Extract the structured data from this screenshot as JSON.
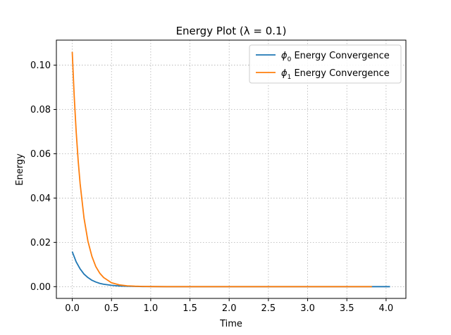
{
  "chart_data": {
    "type": "line",
    "title": "Energy Plot (λ = 0.1)",
    "xlabel": "Time",
    "ylabel": "Energy",
    "xlim": [
      -0.2025,
      4.2525
    ],
    "ylim": [
      -0.0053,
      0.1113
    ],
    "xticks": [
      "0.0",
      "0.5",
      "1.0",
      "1.5",
      "2.0",
      "2.5",
      "3.0",
      "3.5",
      "4.0"
    ],
    "xtick_values": [
      0,
      0.5,
      1.0,
      1.5,
      2.0,
      2.5,
      3.0,
      3.5,
      4.0
    ],
    "yticks": [
      "0.00",
      "0.02",
      "0.04",
      "0.06",
      "0.08",
      "0.10"
    ],
    "ytick_values": [
      0,
      0.02,
      0.04,
      0.06,
      0.08,
      0.1
    ],
    "grid": true,
    "legend_position": "top-right",
    "series": [
      {
        "name": "ϕ0 Energy Convergence",
        "name_base": "ϕ",
        "name_sub": "0",
        "name_rest": " Energy Convergence",
        "color": "#1f77b4",
        "x": [
          0,
          0.05,
          0.1,
          0.15,
          0.2,
          0.25,
          0.3,
          0.35,
          0.4,
          0.5,
          0.6,
          0.7,
          0.8,
          0.9,
          1.0,
          1.2,
          1.5,
          2.0,
          2.5,
          3.0,
          3.5,
          4.05
        ],
        "y": [
          0.0158,
          0.0112,
          0.008,
          0.0057,
          0.0041,
          0.0029,
          0.0021,
          0.0015,
          0.0011,
          0.0006,
          0.0003,
          0.0002,
          0.0001,
          5e-05,
          3e-05,
          1e-05,
          0,
          0,
          0,
          0,
          0,
          0
        ]
      },
      {
        "name": "ϕ1 Energy Convergence",
        "name_base": "ϕ",
        "name_sub": "1",
        "name_rest": " Energy Convergence",
        "color": "#ff7f0e",
        "x": [
          0,
          0.025,
          0.05,
          0.075,
          0.1,
          0.15,
          0.2,
          0.25,
          0.3,
          0.35,
          0.4,
          0.5,
          0.6,
          0.7,
          0.8,
          0.9,
          1.0,
          1.2,
          1.5,
          2.0,
          2.5,
          3.0,
          3.5,
          3.82
        ],
        "y": [
          0.106,
          0.086,
          0.07,
          0.057,
          0.0465,
          0.031,
          0.0205,
          0.0137,
          0.0091,
          0.0061,
          0.0041,
          0.0018,
          0.0008,
          0.0004,
          0.0002,
          0.0001,
          4e-05,
          1e-05,
          0,
          0,
          0,
          0,
          0,
          0
        ]
      }
    ]
  }
}
